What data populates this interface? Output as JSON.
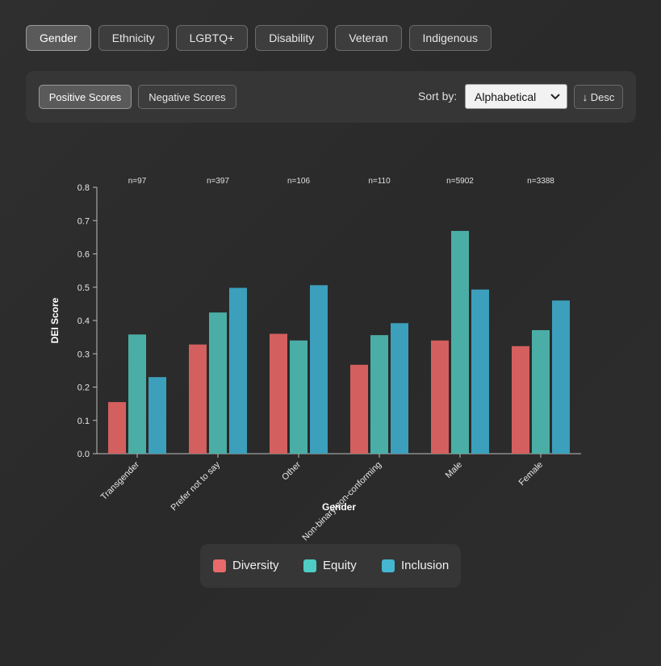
{
  "tabs": [
    {
      "label": "Gender",
      "active": true
    },
    {
      "label": "Ethnicity",
      "active": false
    },
    {
      "label": "LGBTQ+",
      "active": false
    },
    {
      "label": "Disability",
      "active": false
    },
    {
      "label": "Veteran",
      "active": false
    },
    {
      "label": "Indigenous",
      "active": false
    }
  ],
  "controls": {
    "positive_label": "Positive Scores",
    "negative_label": "Negative Scores",
    "sort_label": "Sort by:",
    "sort_value": "Alphabetical",
    "order_label": "↓ Desc"
  },
  "colors": {
    "diversity": "#d45f5f",
    "equity": "#4aaea6",
    "inclusion": "#3c9fbb"
  },
  "chart_data": {
    "type": "bar",
    "xlabel": "Gender",
    "ylabel": "DEI Score",
    "ylim": [
      0,
      0.8
    ],
    "yticks": [
      "0.0",
      "0.1",
      "0.2",
      "0.3",
      "0.4",
      "0.5",
      "0.6",
      "0.7",
      "0.8"
    ],
    "categories": [
      "Transgender",
      "Prefer not to say",
      "Other",
      "Non-binary/non-conforming",
      "Male",
      "Female"
    ],
    "counts": [
      "n=97",
      "n=397",
      "n=106",
      "n=110",
      "n=5902",
      "n=3388"
    ],
    "series": [
      {
        "name": "Diversity",
        "values": [
          0.155,
          0.328,
          0.36,
          0.267,
          0.34,
          0.323
        ]
      },
      {
        "name": "Equity",
        "values": [
          0.358,
          0.424,
          0.34,
          0.356,
          0.669,
          0.371
        ]
      },
      {
        "name": "Inclusion",
        "values": [
          0.23,
          0.498,
          0.506,
          0.392,
          0.493,
          0.46
        ]
      }
    ],
    "grid": false,
    "legend": "bottom-center"
  }
}
